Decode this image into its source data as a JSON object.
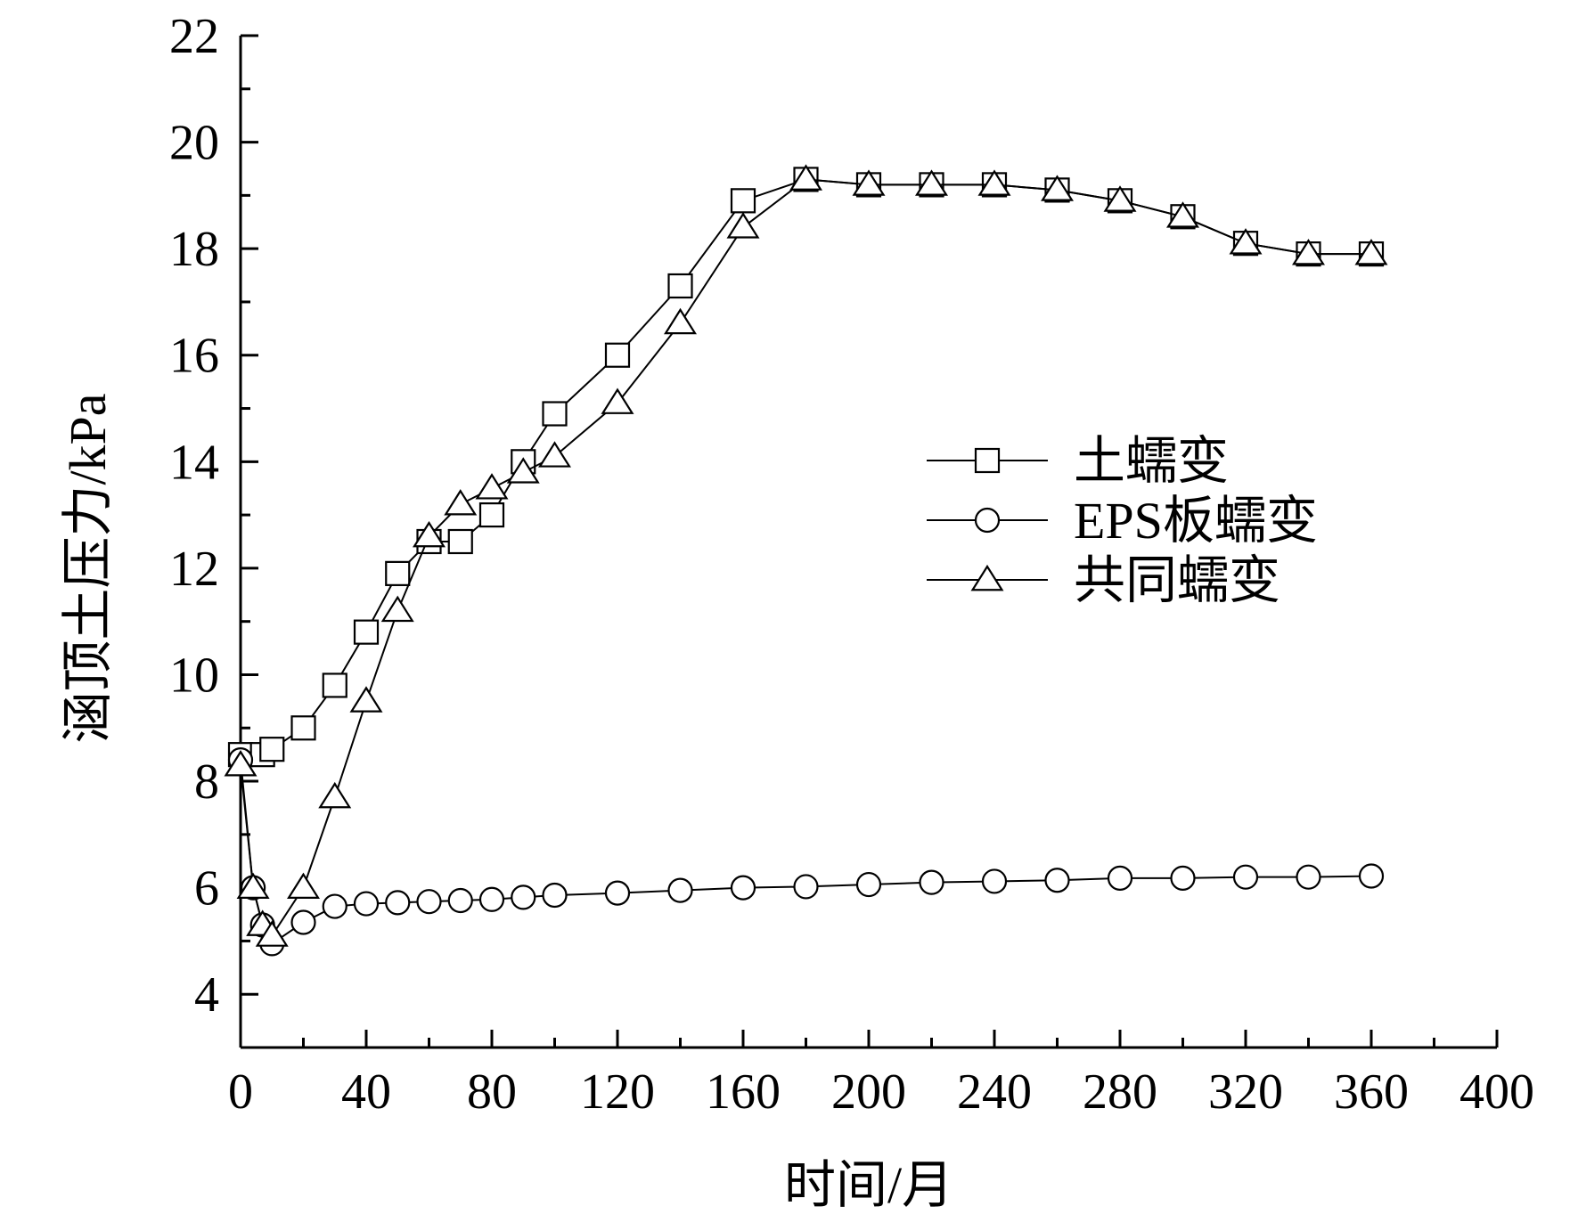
{
  "chart_data": {
    "type": "line",
    "xlabel": "时间/月",
    "ylabel": "涵顶土压力/kPa",
    "xlim": [
      0,
      400
    ],
    "ylim": [
      3,
      22
    ],
    "x_ticks": [
      0,
      40,
      80,
      120,
      160,
      200,
      240,
      280,
      320,
      360,
      400
    ],
    "y_ticks": [
      4,
      6,
      8,
      10,
      12,
      14,
      16,
      18,
      20,
      22
    ],
    "x_tick_labels": [
      "0",
      "40",
      "80",
      "120",
      "160",
      "200",
      "240",
      "280",
      "320",
      "360",
      "400"
    ],
    "y_tick_labels": [
      "4",
      "6",
      "8",
      "10",
      "12",
      "14",
      "16",
      "18",
      "20",
      "22"
    ],
    "grid": false,
    "legend_position": "right",
    "series": [
      {
        "name": "土蠕变",
        "marker": "square",
        "x": [
          0,
          7,
          10,
          20,
          30,
          40,
          50,
          60,
          70,
          80,
          90,
          100,
          120,
          140,
          160,
          180,
          200,
          220,
          240,
          260,
          280,
          300,
          320,
          340,
          360
        ],
        "y": [
          8.5,
          8.5,
          8.6,
          9.0,
          9.8,
          10.8,
          11.9,
          12.5,
          12.5,
          13.0,
          14.0,
          14.9,
          16.0,
          17.3,
          18.9,
          19.3,
          19.2,
          19.2,
          19.2,
          19.1,
          18.9,
          18.6,
          18.1,
          17.9,
          17.9
        ]
      },
      {
        "name": "EPS板蠕变",
        "marker": "circle",
        "x": [
          0,
          4,
          7,
          10,
          20,
          30,
          40,
          50,
          60,
          70,
          80,
          90,
          100,
          120,
          140,
          160,
          180,
          200,
          220,
          240,
          260,
          280,
          300,
          320,
          340,
          360
        ],
        "y": [
          8.4,
          6.0,
          5.3,
          4.95,
          5.35,
          5.65,
          5.7,
          5.72,
          5.74,
          5.76,
          5.78,
          5.82,
          5.86,
          5.9,
          5.95,
          6.0,
          6.02,
          6.06,
          6.1,
          6.12,
          6.14,
          6.18,
          6.18,
          6.2,
          6.2,
          6.22
        ]
      },
      {
        "name": "共同蠕变",
        "marker": "triangle",
        "x": [
          0,
          4,
          7,
          10,
          20,
          30,
          40,
          50,
          60,
          70,
          80,
          90,
          100,
          120,
          140,
          160,
          180,
          200,
          220,
          240,
          260,
          280,
          300,
          320,
          340,
          360
        ],
        "y": [
          8.3,
          6.0,
          5.3,
          5.1,
          6.0,
          7.7,
          9.5,
          11.2,
          12.6,
          13.2,
          13.5,
          13.8,
          14.1,
          15.1,
          16.6,
          18.4,
          19.3,
          19.2,
          19.2,
          19.2,
          19.1,
          18.9,
          18.6,
          18.1,
          17.9,
          17.9
        ]
      }
    ]
  }
}
